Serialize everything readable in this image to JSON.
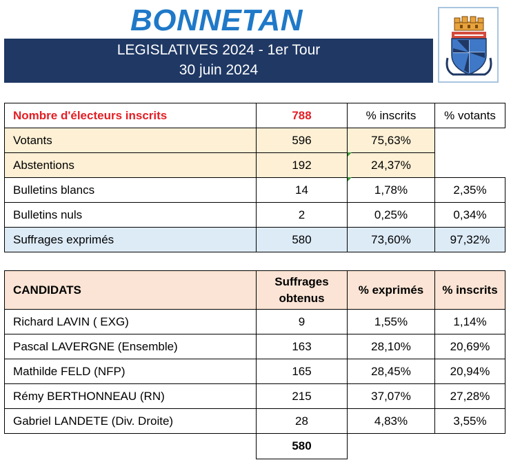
{
  "header": {
    "commune": "BONNETAN",
    "election": "LEGISLATIVES 2024 - 1er Tour",
    "date": "30 juin 2024",
    "crest": "bonnetan-coat-of-arms"
  },
  "summary": {
    "inscrits_label": "Nombre d'électeurs inscrits",
    "inscrits_value": "788",
    "col_pct_inscrits": "% inscrits",
    "col_pct_votants": "% votants",
    "rows": [
      {
        "label": "Votants",
        "value": "596",
        "pct_inscrits": "75,63%",
        "pct_votants": ""
      },
      {
        "label": "Abstentions",
        "value": "192",
        "pct_inscrits": "24,37%",
        "pct_votants": ""
      },
      {
        "label": "Bulletins blancs",
        "value": "14",
        "pct_inscrits": "1,78%",
        "pct_votants": "2,35%"
      },
      {
        "label": "Bulletins nuls",
        "value": "2",
        "pct_inscrits": "0,25%",
        "pct_votants": "0,34%"
      },
      {
        "label": "Suffrages exprimés",
        "value": "580",
        "pct_inscrits": "73,60%",
        "pct_votants": "97,32%"
      }
    ]
  },
  "candidats": {
    "col_candidats": "CANDIDATS",
    "col_suffrages_line1": "Suffrages",
    "col_suffrages_line2": "obtenus",
    "col_pct_exprimes": "% exprimés",
    "col_pct_inscrits": "% inscrits",
    "rows": [
      {
        "name": "Richard LAVIN ( EXG)",
        "votes": "9",
        "pct_exprimes": "1,55%",
        "pct_inscrits": "1,14%"
      },
      {
        "name": "Pascal LAVERGNE (Ensemble)",
        "votes": "163",
        "pct_exprimes": "28,10%",
        "pct_inscrits": "20,69%"
      },
      {
        "name": "Mathilde FELD (NFP)",
        "votes": "165",
        "pct_exprimes": "28,45%",
        "pct_inscrits": "20,94%"
      },
      {
        "name": "Rémy BERTHONNEAU (RN)",
        "votes": "215",
        "pct_exprimes": "37,07%",
        "pct_inscrits": "27,28%"
      },
      {
        "name": "Gabriel LANDETE (Div. Droite)",
        "votes": "28",
        "pct_exprimes": "4,83%",
        "pct_inscrits": "3,55%"
      }
    ],
    "total": "580"
  },
  "colors": {
    "title_blue": "#1f79c8",
    "banner_navy": "#1f3864",
    "highlight_red": "#e31e24",
    "peach_fill": "#fdf0d5",
    "blue_fill": "#ddebf7",
    "header_fill": "#fbe4d5"
  }
}
